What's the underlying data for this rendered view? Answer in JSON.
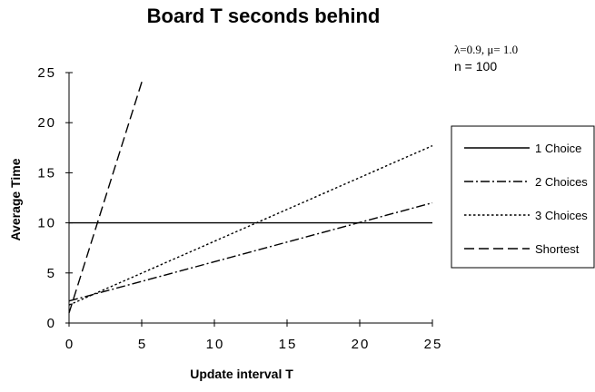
{
  "chart_data": {
    "type": "line",
    "title": "Board T seconds behind",
    "xlabel": "Update interval T",
    "ylabel": "Average Time",
    "xlim": [
      0,
      25
    ],
    "ylim": [
      0,
      25
    ],
    "x_ticks": [
      "0",
      "5",
      "10",
      "15",
      "20",
      "25"
    ],
    "y_ticks": [
      "0",
      "5",
      "10",
      "15",
      "20",
      "25"
    ],
    "grid": false,
    "legend_position": "right",
    "annotations": [
      "λ=0.9, μ= 1.0",
      "n = 100"
    ],
    "series": [
      {
        "name": "1 Choice",
        "style": "solid",
        "x": [
          0,
          25
        ],
        "y": [
          10.0,
          10.0
        ]
      },
      {
        "name": "2 Choices",
        "style": "dash-dot",
        "x": [
          0,
          25
        ],
        "y": [
          2.2,
          12.0
        ]
      },
      {
        "name": "3 Choices",
        "style": "dotted",
        "x": [
          0,
          25
        ],
        "y": [
          1.8,
          17.7
        ]
      },
      {
        "name": "Shortest",
        "style": "dashed",
        "x": [
          0,
          5.1
        ],
        "y": [
          1.0,
          24.5
        ]
      }
    ]
  }
}
